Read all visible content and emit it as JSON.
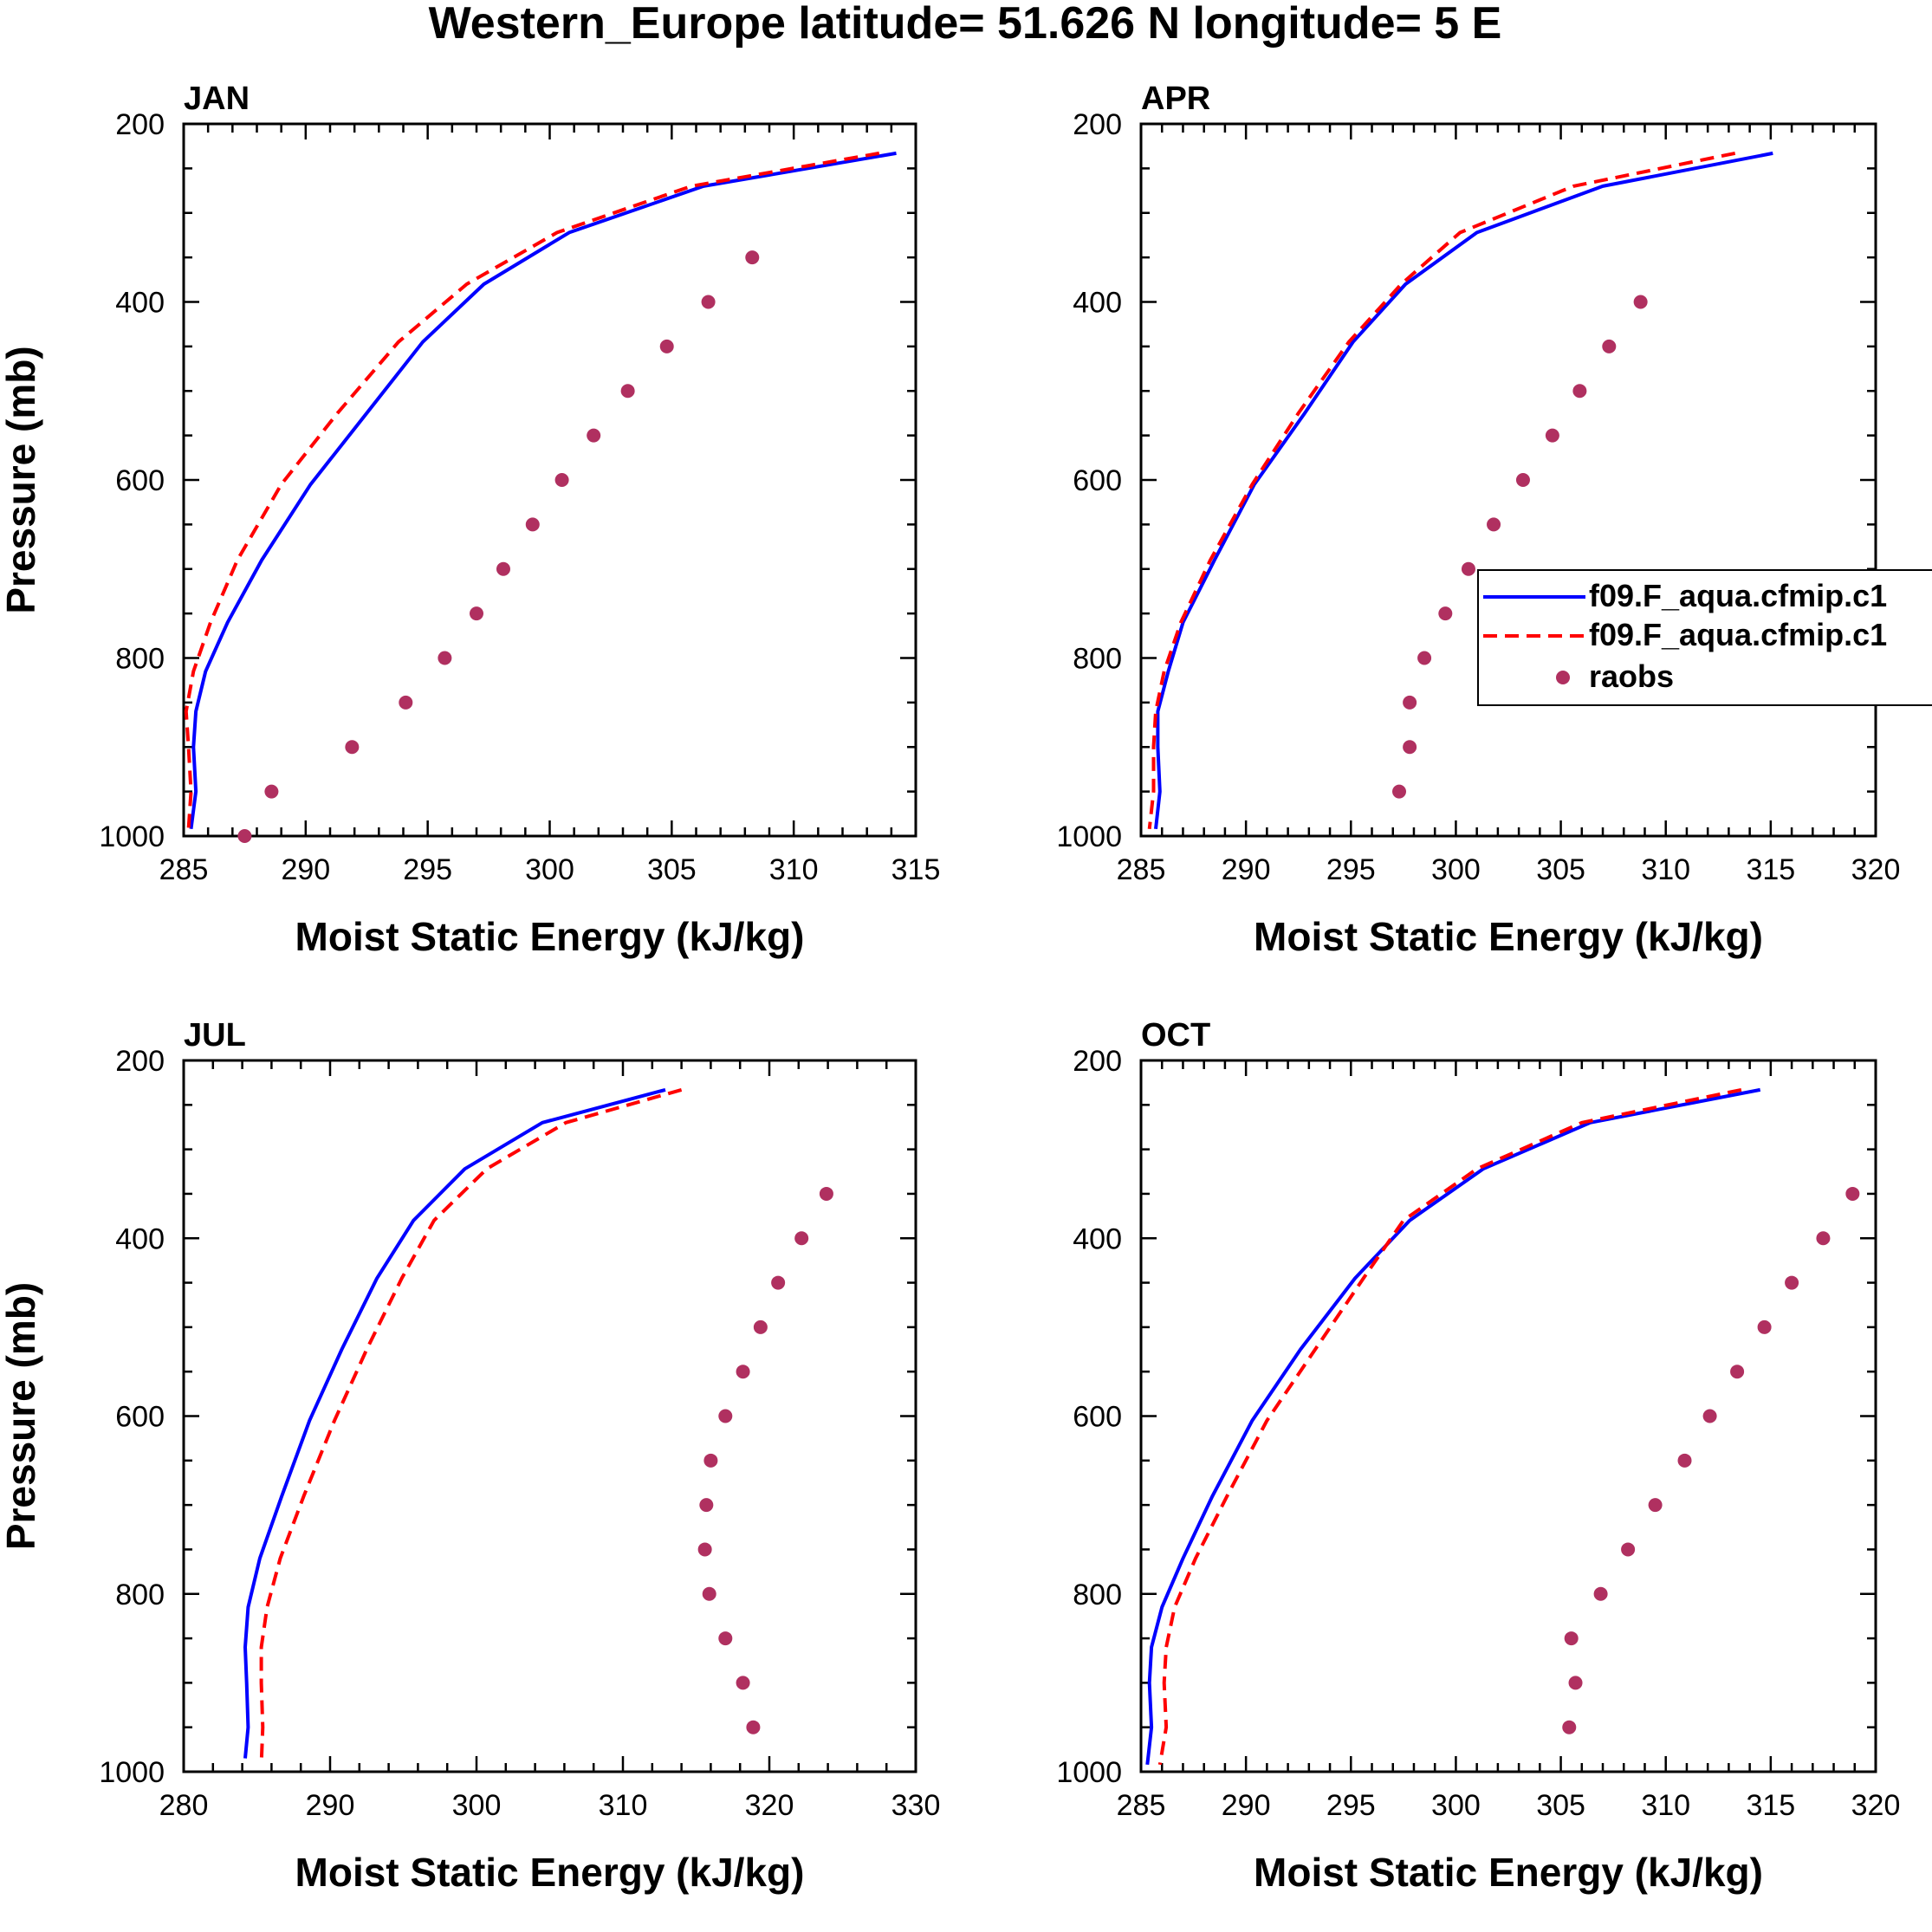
{
  "title": "Western_Europe  latitude= 51.626 N longitude= 5 E",
  "colors": {
    "model1": "#0000ff",
    "model2": "#ff0000",
    "obs": "#b03060",
    "axis": "#000000"
  },
  "legend": {
    "entries": [
      {
        "label": "f09.F_aqua.cfmip.c1",
        "style": "solid",
        "series": "model1"
      },
      {
        "label": "f09.F_aqua.cfmip.c1",
        "style": "dashed",
        "series": "model2"
      },
      {
        "label": "raobs",
        "style": "dots",
        "series": "obs"
      }
    ]
  },
  "chart_data": [
    {
      "type": "line",
      "panel": "JAN",
      "xlabel": "Moist Static Energy (kJ/kg)",
      "ylabel": "Pressure (mb)",
      "xlim": [
        285,
        315
      ],
      "xticks": [
        285,
        290,
        295,
        300,
        305,
        310,
        315
      ],
      "ylim": [
        200,
        1000
      ],
      "yticks": [
        200,
        400,
        600,
        800,
        1000
      ],
      "y_reversed": true,
      "series": [
        {
          "name": "f09.F_aqua.cfmip.c1",
          "style": "solid",
          "points": [
            [
              314.2,
              233
            ],
            [
              306.3,
              270
            ],
            [
              300.8,
              322
            ],
            [
              297.3,
              380
            ],
            [
              294.8,
              445
            ],
            [
              292.5,
              525
            ],
            [
              290.2,
              605
            ],
            [
              288.2,
              690
            ],
            [
              286.8,
              760
            ],
            [
              285.9,
              815
            ],
            [
              285.5,
              860
            ],
            [
              285.4,
              900
            ],
            [
              285.5,
              950
            ],
            [
              285.3,
              992
            ]
          ]
        },
        {
          "name": "f09.F_aqua.cfmip.c1",
          "style": "dashed",
          "points": [
            [
              313.5,
              233
            ],
            [
              305.8,
              270
            ],
            [
              300.3,
              322
            ],
            [
              296.6,
              380
            ],
            [
              293.8,
              445
            ],
            [
              291.3,
              525
            ],
            [
              289.0,
              605
            ],
            [
              287.2,
              690
            ],
            [
              286.1,
              760
            ],
            [
              285.4,
              815
            ],
            [
              285.1,
              860
            ],
            [
              285.2,
              900
            ],
            [
              285.3,
              950
            ],
            [
              285.2,
              992
            ]
          ]
        },
        {
          "name": "raobs",
          "style": "dots",
          "points": [
            [
              308.3,
              350
            ],
            [
              306.5,
              400
            ],
            [
              304.8,
              450
            ],
            [
              303.2,
              500
            ],
            [
              301.8,
              550
            ],
            [
              300.5,
              600
            ],
            [
              299.3,
              650
            ],
            [
              298.1,
              700
            ],
            [
              297.0,
              750
            ],
            [
              295.7,
              800
            ],
            [
              294.1,
              850
            ],
            [
              291.9,
              900
            ],
            [
              288.6,
              950
            ],
            [
              287.5,
              1000
            ]
          ]
        }
      ]
    },
    {
      "type": "line",
      "panel": "APR",
      "xlabel": "Moist Static Energy (kJ/kg)",
      "ylabel": "",
      "xlim": [
        285,
        320
      ],
      "xticks": [
        285,
        290,
        295,
        300,
        305,
        310,
        315,
        320
      ],
      "ylim": [
        200,
        1000
      ],
      "yticks": [
        200,
        400,
        600,
        800,
        1000
      ],
      "y_reversed": true,
      "series": [
        {
          "name": "f09.F_aqua.cfmip.c1",
          "style": "solid",
          "points": [
            [
              315.1,
              233
            ],
            [
              307.0,
              270
            ],
            [
              301.0,
              322
            ],
            [
              297.6,
              380
            ],
            [
              295.1,
              445
            ],
            [
              292.8,
              525
            ],
            [
              290.4,
              605
            ],
            [
              288.5,
              690
            ],
            [
              287.0,
              760
            ],
            [
              286.3,
              815
            ],
            [
              285.8,
              860
            ],
            [
              285.8,
              900
            ],
            [
              285.9,
              950
            ],
            [
              285.7,
              992
            ]
          ]
        },
        {
          "name": "f09.F_aqua.cfmip.c1",
          "style": "dashed",
          "points": [
            [
              313.3,
              233
            ],
            [
              305.6,
              270
            ],
            [
              300.2,
              322
            ],
            [
              297.4,
              380
            ],
            [
              294.9,
              445
            ],
            [
              292.5,
              525
            ],
            [
              290.3,
              605
            ],
            [
              288.3,
              690
            ],
            [
              286.9,
              760
            ],
            [
              286.1,
              815
            ],
            [
              285.7,
              860
            ],
            [
              285.6,
              900
            ],
            [
              285.6,
              950
            ],
            [
              285.4,
              992
            ]
          ]
        },
        {
          "name": "raobs",
          "style": "dots",
          "points": [
            [
              308.8,
              400
            ],
            [
              307.3,
              450
            ],
            [
              305.9,
              500
            ],
            [
              304.6,
              550
            ],
            [
              303.2,
              600
            ],
            [
              301.8,
              650
            ],
            [
              300.6,
              700
            ],
            [
              299.5,
              750
            ],
            [
              298.5,
              800
            ],
            [
              297.8,
              850
            ],
            [
              297.8,
              900
            ],
            [
              297.3,
              950
            ]
          ]
        }
      ]
    },
    {
      "type": "line",
      "panel": "JUL",
      "xlabel": "Moist Static Energy (kJ/kg)",
      "ylabel": "Pressure (mb)",
      "xlim": [
        280,
        330
      ],
      "xticks": [
        280,
        290,
        300,
        310,
        320,
        330
      ],
      "ylim": [
        200,
        1000
      ],
      "yticks": [
        200,
        400,
        600,
        800,
        1000
      ],
      "y_reversed": true,
      "series": [
        {
          "name": "f09.F_aqua.cfmip.c1",
          "style": "solid",
          "points": [
            [
              312.9,
              233
            ],
            [
              304.5,
              270
            ],
            [
              299.2,
              322
            ],
            [
              295.7,
              380
            ],
            [
              293.2,
              445
            ],
            [
              290.8,
              525
            ],
            [
              288.6,
              605
            ],
            [
              286.7,
              690
            ],
            [
              285.2,
              760
            ],
            [
              284.4,
              815
            ],
            [
              284.2,
              860
            ],
            [
              284.3,
              900
            ],
            [
              284.4,
              950
            ],
            [
              284.2,
              985
            ]
          ]
        },
        {
          "name": "f09.F_aqua.cfmip.c1",
          "style": "dashed",
          "points": [
            [
              314.0,
              233
            ],
            [
              306.1,
              270
            ],
            [
              300.7,
              322
            ],
            [
              297.1,
              380
            ],
            [
              294.9,
              445
            ],
            [
              292.5,
              525
            ],
            [
              290.3,
              605
            ],
            [
              288.2,
              690
            ],
            [
              286.6,
              760
            ],
            [
              285.7,
              815
            ],
            [
              285.3,
              860
            ],
            [
              285.3,
              900
            ],
            [
              285.4,
              950
            ],
            [
              285.3,
              992
            ]
          ]
        },
        {
          "name": "raobs",
          "style": "dots",
          "points": [
            [
              323.9,
              350
            ],
            [
              322.2,
              400
            ],
            [
              320.6,
              450
            ],
            [
              319.4,
              500
            ],
            [
              318.2,
              550
            ],
            [
              317.0,
              600
            ],
            [
              316.0,
              650
            ],
            [
              315.7,
              700
            ],
            [
              315.6,
              750
            ],
            [
              315.9,
              800
            ],
            [
              317.0,
              850
            ],
            [
              318.2,
              900
            ],
            [
              318.9,
              950
            ]
          ]
        }
      ]
    },
    {
      "type": "line",
      "panel": "OCT",
      "xlabel": "Moist Static Energy (kJ/kg)",
      "ylabel": "",
      "xlim": [
        285,
        320
      ],
      "xticks": [
        285,
        290,
        295,
        300,
        305,
        310,
        315,
        320
      ],
      "ylim": [
        200,
        1000
      ],
      "yticks": [
        200,
        400,
        600,
        800,
        1000
      ],
      "y_reversed": true,
      "series": [
        {
          "name": "f09.F_aqua.cfmip.c1",
          "style": "solid",
          "points": [
            [
              314.5,
              233
            ],
            [
              306.4,
              270
            ],
            [
              301.3,
              322
            ],
            [
              297.8,
              380
            ],
            [
              295.2,
              445
            ],
            [
              292.6,
              525
            ],
            [
              290.3,
              605
            ],
            [
              288.4,
              690
            ],
            [
              287.0,
              760
            ],
            [
              286.0,
              815
            ],
            [
              285.5,
              860
            ],
            [
              285.4,
              900
            ],
            [
              285.5,
              950
            ],
            [
              285.3,
              992
            ]
          ]
        },
        {
          "name": "f09.F_aqua.cfmip.c1",
          "style": "dashed",
          "points": [
            [
              313.6,
              233
            ],
            [
              306.0,
              270
            ],
            [
              301.0,
              322
            ],
            [
              297.5,
              380
            ],
            [
              295.6,
              445
            ],
            [
              293.3,
              525
            ],
            [
              291.0,
              605
            ],
            [
              289.1,
              690
            ],
            [
              287.6,
              760
            ],
            [
              286.6,
              815
            ],
            [
              286.2,
              860
            ],
            [
              286.1,
              900
            ],
            [
              286.2,
              950
            ],
            [
              285.9,
              992
            ]
          ]
        },
        {
          "name": "raobs",
          "style": "dots",
          "points": [
            [
              318.9,
              350
            ],
            [
              317.5,
              400
            ],
            [
              316.0,
              450
            ],
            [
              314.7,
              500
            ],
            [
              313.4,
              550
            ],
            [
              312.1,
              600
            ],
            [
              310.9,
              650
            ],
            [
              309.5,
              700
            ],
            [
              308.2,
              750
            ],
            [
              306.9,
              800
            ],
            [
              305.5,
              850
            ],
            [
              305.7,
              900
            ],
            [
              305.4,
              950
            ]
          ]
        }
      ]
    }
  ]
}
